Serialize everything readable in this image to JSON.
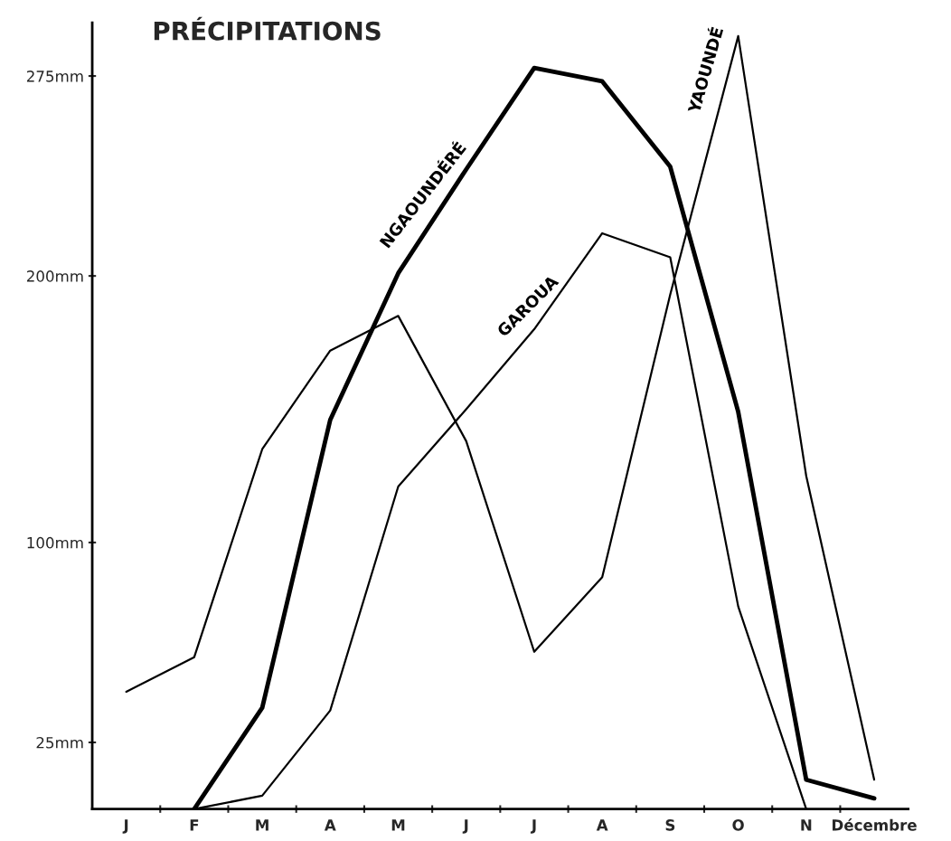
{
  "chart_data": {
    "type": "line",
    "title": "PRÉCIPITATIONS",
    "categories": [
      "J",
      "F",
      "M",
      "A",
      "M",
      "J",
      "J",
      "A",
      "S",
      "O",
      "N",
      "Décembre"
    ],
    "series": [
      {
        "name": "NGAOUNDÉRÉ",
        "color": "#000000",
        "values": [
          null,
          0,
          38,
          146,
          201,
          240,
          278,
          273,
          241,
          149,
          11,
          4
        ]
      },
      {
        "name": "GAROUA",
        "color": "#000000",
        "values": [
          null,
          0,
          5,
          37,
          121,
          150,
          180,
          216,
          207,
          76,
          0,
          null
        ]
      },
      {
        "name": "YAOUNDÉ",
        "color": "#000000",
        "values": [
          44,
          57,
          135,
          172,
          185,
          138,
          59,
          87,
          193,
          290,
          125,
          11
        ]
      }
    ],
    "ylim": [
      0,
      295
    ],
    "yticks": [
      {
        "value": 25,
        "label": "25mm"
      },
      {
        "value": 100,
        "label": "100mm"
      },
      {
        "value": 200,
        "label": "200mm"
      },
      {
        "value": 275,
        "label": "275mm"
      }
    ],
    "grid": false,
    "legend": false,
    "marker": "none",
    "line_style": "solid"
  }
}
